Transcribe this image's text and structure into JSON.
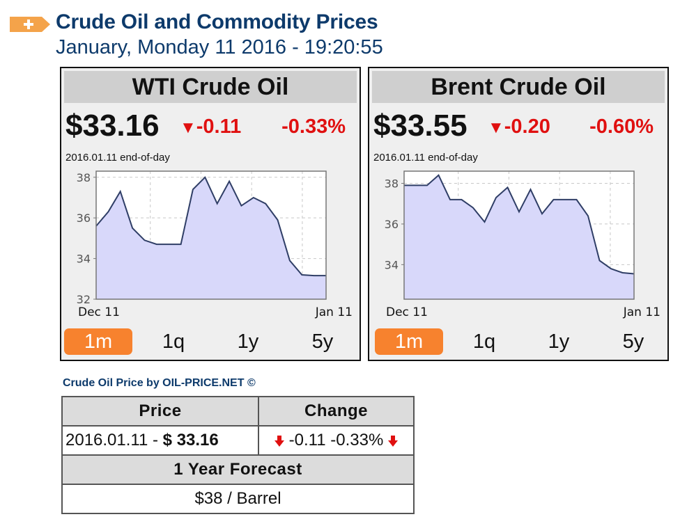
{
  "header": {
    "icon": "orange-plus-arrow-icon",
    "title": "Crude Oil and Commodity Prices",
    "datetime": "January, Monday 11 2016 - 19:20:55"
  },
  "widgets": [
    {
      "title": "WTI Crude Oil",
      "price": "$33.16",
      "change": "-0.11",
      "change_icon": "triangle-down-icon",
      "change_pct": "-0.33%",
      "as_of": "2016.01.11 end-of-day",
      "tabs": [
        {
          "label": "1m",
          "active": true
        },
        {
          "label": "1q",
          "active": false
        },
        {
          "label": "1y",
          "active": false
        },
        {
          "label": "5y",
          "active": false
        }
      ]
    },
    {
      "title": "Brent Crude Oil",
      "price": "$33.55",
      "change": "-0.20",
      "change_icon": "triangle-down-icon",
      "change_pct": "-0.60%",
      "as_of": "2016.01.11 end-of-day",
      "tabs": [
        {
          "label": "1m",
          "active": true
        },
        {
          "label": "1q",
          "active": false
        },
        {
          "label": "1y",
          "active": false
        },
        {
          "label": "5y",
          "active": false
        }
      ]
    }
  ],
  "chart_data": [
    {
      "type": "area",
      "title": "WTI Crude Oil",
      "x_tick_labels": [
        "Dec 11",
        "Jan 11"
      ],
      "y_ticks": [
        32,
        34,
        36,
        38
      ],
      "ylim": [
        32,
        38.3
      ],
      "grid": true,
      "fill_color": "#d8d8fa",
      "line_color": "#2f3e66",
      "values": [
        35.6,
        36.3,
        37.3,
        35.5,
        34.9,
        34.7,
        34.7,
        34.7,
        37.4,
        38.0,
        36.7,
        37.8,
        36.6,
        37.0,
        36.7,
        35.9,
        33.9,
        33.2,
        33.16,
        33.16
      ]
    },
    {
      "type": "area",
      "title": "Brent Crude Oil",
      "x_tick_labels": [
        "Dec 11",
        "Jan 11"
      ],
      "y_ticks": [
        34,
        36,
        38
      ],
      "ylim": [
        32.3,
        38.6
      ],
      "grid": true,
      "fill_color": "#d8d8fa",
      "line_color": "#2f3e66",
      "values": [
        37.9,
        37.9,
        37.9,
        38.4,
        37.2,
        37.2,
        36.8,
        36.1,
        37.3,
        37.8,
        36.6,
        37.7,
        36.5,
        37.2,
        37.2,
        37.2,
        36.4,
        34.2,
        33.8,
        33.6,
        33.55
      ]
    }
  ],
  "credit": "Crude Oil Price by OIL-PRICE.NET ©",
  "price_table": {
    "headers": [
      "Price",
      "Change"
    ],
    "row": {
      "date": "2016.01.11 - ",
      "price": "$ 33.16",
      "change": "-0.11 -0.33%",
      "change_icon": "arrow-down-icon"
    },
    "forecast_header": "1 Year Forecast",
    "forecast_value": "$38 / Barrel"
  },
  "colors": {
    "brand_blue": "#0d3a6b",
    "negative_red": "#e01010",
    "active_tab_orange": "#f7822e"
  }
}
